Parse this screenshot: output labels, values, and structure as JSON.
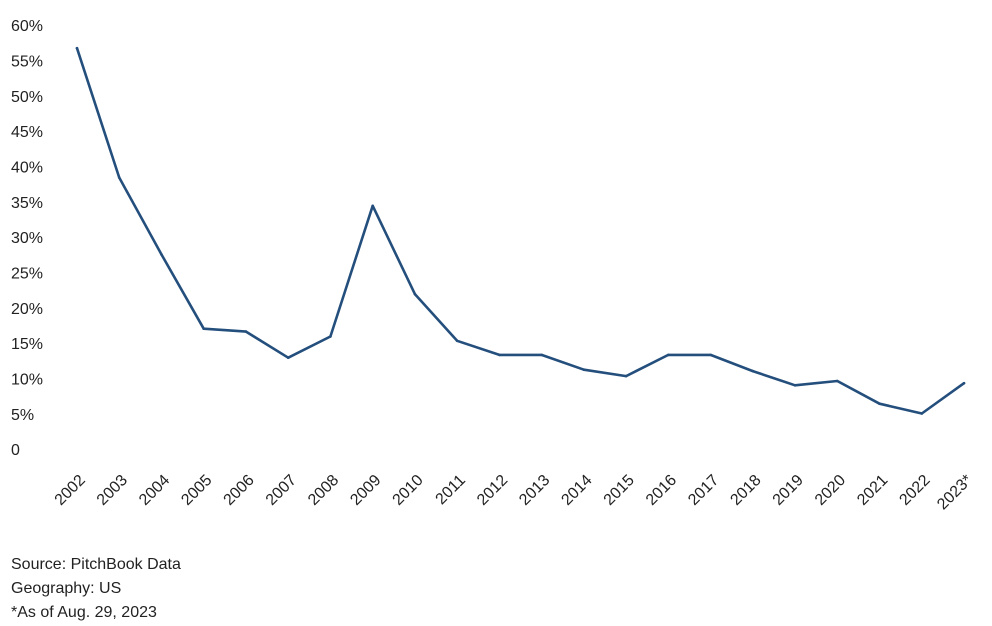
{
  "chart_data": {
    "type": "line",
    "title": "",
    "xlabel": "",
    "ylabel": "",
    "categories": [
      "2002",
      "2003",
      "2004",
      "2005",
      "2006",
      "2007",
      "2008",
      "2009",
      "2010",
      "2011",
      "2012",
      "2013",
      "2014",
      "2015",
      "2016",
      "2017",
      "2018",
      "2019",
      "2020",
      "2021",
      "2022",
      "2023*"
    ],
    "series": [
      {
        "values": [
          57.0,
          38.7,
          27.8,
          17.3,
          16.9,
          13.2,
          16.2,
          34.7,
          22.2,
          15.6,
          13.6,
          13.6,
          11.5,
          10.6,
          13.6,
          13.6,
          11.3,
          9.3,
          9.9,
          6.7,
          5.3,
          9.6
        ]
      }
    ],
    "y_ticks": [
      "0",
      "5%",
      "10%",
      "15%",
      "20%",
      "25%",
      "30%",
      "35%",
      "40%",
      "45%",
      "50%",
      "55%",
      "60%"
    ],
    "ylim": [
      0,
      60
    ],
    "grid": false,
    "legend": "none",
    "line_color": "#244f7d"
  },
  "footnotes": {
    "source": "Source: PitchBook Data",
    "geography": "Geography: US",
    "as_of": "*As of Aug. 29, 2023"
  }
}
